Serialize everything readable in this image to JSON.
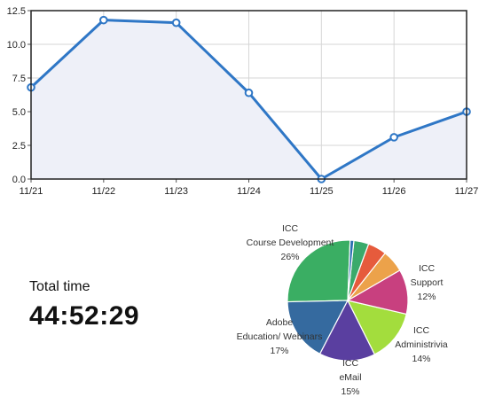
{
  "chart_data": [
    {
      "type": "line",
      "x": [
        "11/21",
        "11/22",
        "11/23",
        "11/24",
        "11/25",
        "11/26",
        "11/27"
      ],
      "y_ticks": [
        "0.0",
        "2.5",
        "5.0",
        "7.5",
        "10.0",
        "12.5"
      ],
      "ylim": [
        0,
        12.5
      ],
      "series": [
        {
          "values": [
            6.8,
            11.8,
            11.6,
            6.4,
            0.0,
            3.1,
            5.0
          ]
        }
      ],
      "grid": true,
      "colors": {
        "line": "#2f77c6",
        "area": "#eef0f8",
        "grid": "#d6d6d6",
        "frame": "#222222"
      }
    },
    {
      "type": "pie",
      "slices": [
        {
          "label_lines": [
            "ICC",
            "Course Development"
          ],
          "pct": "26%",
          "value": 26,
          "color": "#3aae63"
        },
        {
          "label_lines": [
            "Adobe",
            "Education/ Webinars"
          ],
          "pct": "17%",
          "value": 17,
          "color": "#356a9f"
        },
        {
          "label_lines": [
            "ICC",
            "eMail"
          ],
          "pct": "15%",
          "value": 15,
          "color": "#5a3fa0"
        },
        {
          "label_lines": [
            "ICC",
            "Administrivia"
          ],
          "pct": "14%",
          "value": 14,
          "color": "#a3dd3d"
        },
        {
          "label_lines": [
            "ICC",
            "Support"
          ],
          "pct": "12%",
          "value": 12,
          "color": "#c8407f"
        },
        {
          "label_lines": [],
          "pct": "",
          "value": 6,
          "color": "#eca24a"
        },
        {
          "label_lines": [],
          "pct": "",
          "value": 5,
          "color": "#e65b3c"
        },
        {
          "label_lines": [],
          "pct": "",
          "value": 4,
          "color": "#3aaa6b"
        },
        {
          "label_lines": [],
          "pct": "",
          "value": 1,
          "color": "#2a6fb0"
        }
      ]
    }
  ],
  "total_time": {
    "label": "Total time",
    "value": "44:52:29"
  }
}
